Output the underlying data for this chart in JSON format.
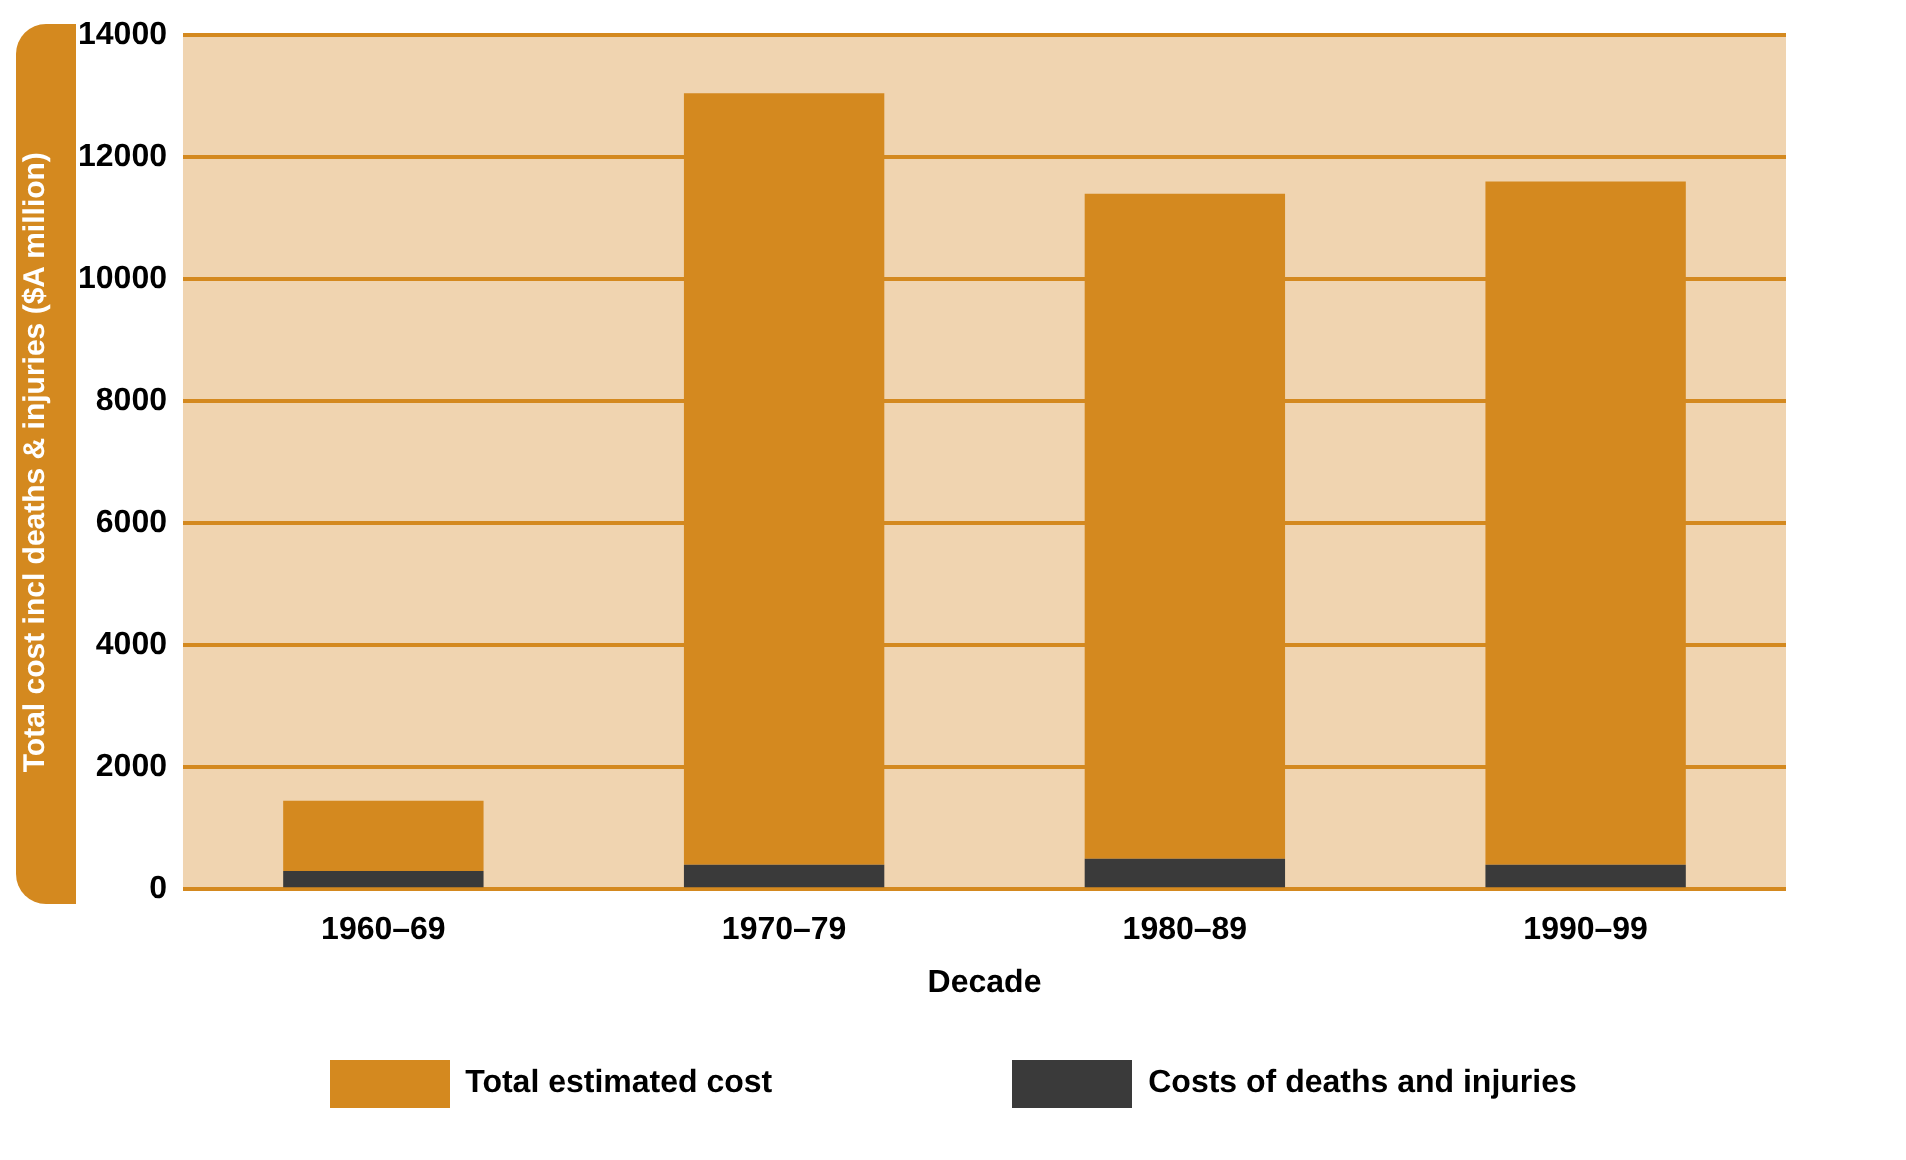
{
  "chart_data": {
    "type": "bar",
    "stacked": true,
    "xlabel": "Decade",
    "ylabel": "Total cost incl deaths & injuries ($A million)",
    "categories": [
      "1960–69",
      "1970–79",
      "1980–89",
      "1990–99"
    ],
    "series": [
      {
        "name": "Costs of deaths and injuries",
        "color": "#3a3a3a",
        "values": [
          300,
          400,
          500,
          400
        ]
      },
      {
        "name": "Total estimated cost",
        "color": "#d4891f",
        "values": [
          1150,
          12650,
          10900,
          11200
        ]
      }
    ],
    "ylim": [
      0,
      14000
    ],
    "yticks": [
      0,
      2000,
      4000,
      6000,
      8000,
      10000,
      12000,
      14000
    ],
    "grid": "y",
    "legend": "bottom"
  }
}
